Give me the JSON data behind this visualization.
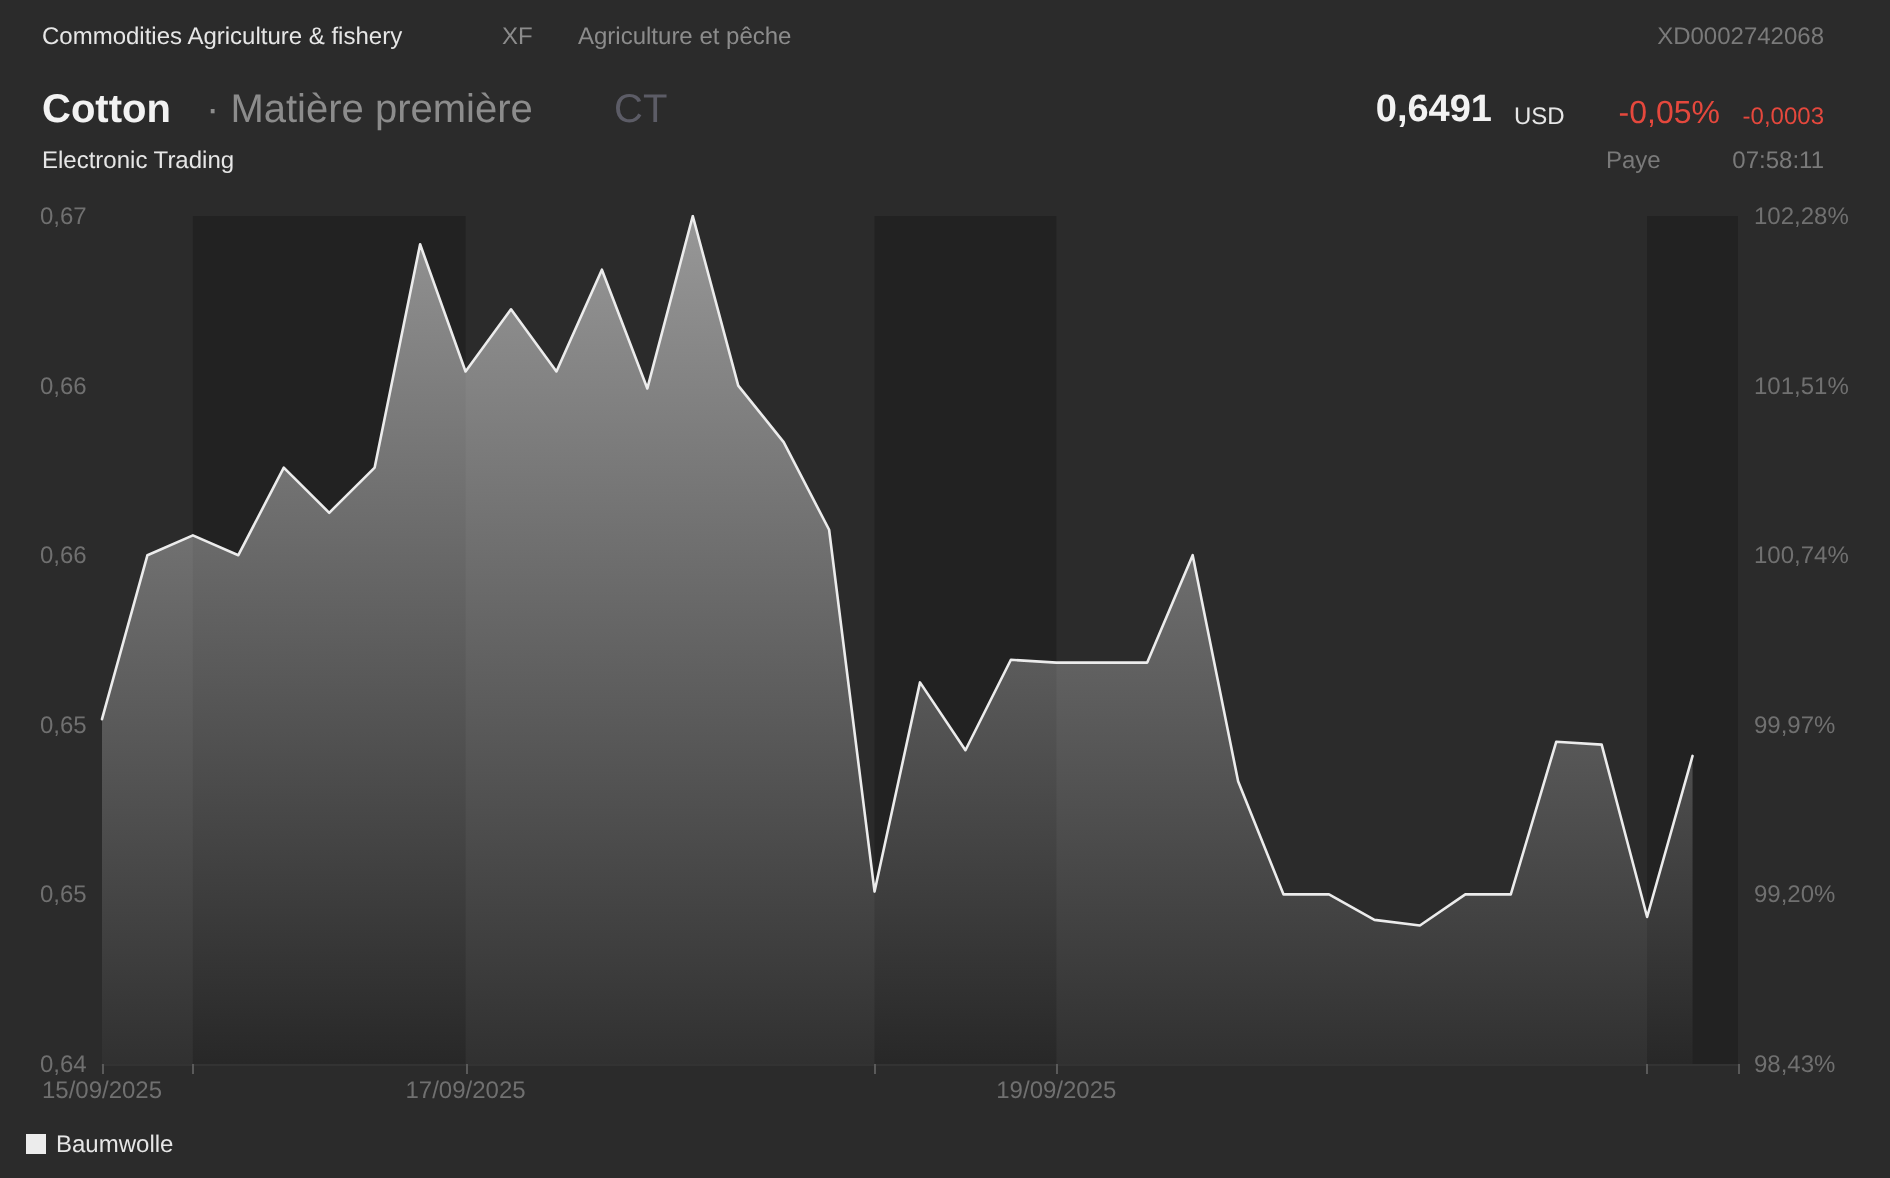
{
  "chart_data": {
    "type": "area",
    "title": "Cotton",
    "subtitle": "· Matière première",
    "annotations": [
      "Commodities Agriculture & fishery",
      "XF",
      "Agriculture et pêche",
      "XD0002742068",
      "CT",
      "0,6491",
      "USD",
      "-0,05%",
      "-0,0003",
      "Electronic Trading",
      "Paye",
      "07:58:11"
    ],
    "categories": [
      "15/09/2025",
      null,
      null,
      null,
      null,
      null,
      null,
      null,
      "17/09/2025",
      null,
      null,
      null,
      null,
      null,
      null,
      null,
      null,
      null,
      null,
      null,
      null,
      "19/09/2025",
      null,
      null,
      null,
      null,
      null,
      null,
      null,
      null,
      null,
      null,
      null,
      null,
      null,
      null
    ],
    "series": [
      {
        "name": "Baumwolle",
        "color": "#ececec",
        "values": [
          0.6522,
          0.658,
          0.6587,
          0.658,
          0.6611,
          0.6595,
          0.6611,
          0.669,
          0.6645,
          0.6667,
          0.6645,
          0.6681,
          0.6639,
          0.67,
          0.664,
          0.662,
          0.6589,
          0.6461,
          0.6535,
          0.6511,
          0.6543,
          0.6542,
          0.6542,
          0.6542,
          0.658,
          0.65,
          0.646,
          0.646,
          0.6451,
          0.6449,
          0.646,
          0.646,
          0.6514,
          0.6513,
          0.6452,
          0.6509
        ]
      }
    ],
    "ylim": [
      0.64,
      0.67
    ],
    "yticks": [
      {
        "value": 0.64,
        "label": "0,64"
      },
      {
        "value": 0.646,
        "label": "0,65"
      },
      {
        "value": 0.652,
        "label": "0,65"
      },
      {
        "value": 0.658,
        "label": "0,66"
      },
      {
        "value": 0.664,
        "label": "0,66"
      },
      {
        "value": 0.67,
        "label": "0,67"
      }
    ],
    "y2lim": [
      98.43,
      102.28
    ],
    "y2ticks": [
      {
        "value": 98.43,
        "label": "98,43%"
      },
      {
        "value": 99.2,
        "label": "99,20%"
      },
      {
        "value": 99.97,
        "label": "99,97%"
      },
      {
        "value": 100.74,
        "label": "100,74%"
      },
      {
        "value": 101.51,
        "label": "101,51%"
      },
      {
        "value": 102.28,
        "label": "102,28%"
      }
    ],
    "legend": "bottom left"
  }
}
